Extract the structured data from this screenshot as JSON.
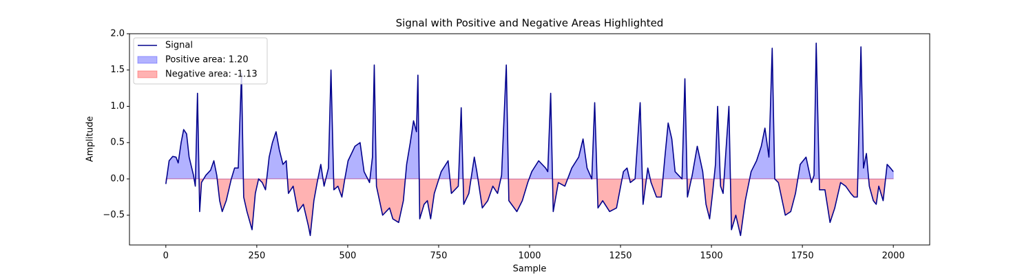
{
  "chart_data": {
    "type": "line",
    "title": "Signal with Positive and Negative Areas Highlighted",
    "x_label": "Sample",
    "y_label": "Amplitude",
    "x": [
      0,
      9,
      19,
      28,
      34,
      42,
      49,
      57,
      64,
      76,
      81,
      87,
      93,
      98,
      110,
      123,
      132,
      140,
      148,
      155,
      166,
      180,
      189,
      199,
      208,
      214,
      223,
      237,
      246,
      255,
      265,
      274,
      284,
      293,
      303,
      312,
      322,
      331,
      337,
      350,
      363,
      378,
      392,
      397,
      407,
      416,
      426,
      435,
      447,
      454,
      462,
      473,
      484,
      492,
      501,
      520,
      534,
      545,
      560,
      568,
      573,
      579,
      596,
      615,
      624,
      640,
      653,
      662,
      672,
      681,
      689,
      693,
      698,
      710,
      719,
      728,
      738,
      757,
      776,
      785,
      804,
      812,
      819,
      833,
      848,
      855,
      870,
      885,
      899,
      912,
      923,
      936,
      943,
      965,
      980,
      995,
      1006,
      1025,
      1044,
      1050,
      1058,
      1065,
      1079,
      1097,
      1116,
      1135,
      1147,
      1158,
      1171,
      1179,
      1188,
      1201,
      1220,
      1239,
      1258,
      1268,
      1277,
      1290,
      1304,
      1312,
      1325,
      1334,
      1349,
      1362,
      1372,
      1381,
      1391,
      1400,
      1419,
      1427,
      1434,
      1447,
      1461,
      1476,
      1485,
      1495,
      1503,
      1511,
      1517,
      1525,
      1532,
      1548,
      1555,
      1567,
      1580,
      1593,
      1609,
      1624,
      1637,
      1647,
      1658,
      1667,
      1674,
      1684,
      1703,
      1718,
      1731,
      1744,
      1760,
      1775,
      1782,
      1788,
      1797,
      1812,
      1826,
      1839,
      1855,
      1869,
      1883,
      1892,
      1901,
      1911,
      1918,
      1926,
      1934,
      1945,
      1953,
      1960,
      1972,
      1983,
      1992,
      2000
    ],
    "series": [
      {
        "name": "Signal",
        "color": "#00008b",
        "values": [
          -0.07,
          0.25,
          0.31,
          0.3,
          0.22,
          0.5,
          0.68,
          0.62,
          0.3,
          0.05,
          -0.1,
          1.18,
          -0.45,
          -0.05,
          0.05,
          0.12,
          0.25,
          0.05,
          -0.3,
          -0.45,
          -0.3,
          0.0,
          0.15,
          0.15,
          1.45,
          -0.25,
          -0.45,
          -0.7,
          -0.2,
          0.0,
          -0.05,
          -0.15,
          0.3,
          0.5,
          0.65,
          0.4,
          0.2,
          0.25,
          -0.2,
          -0.1,
          -0.45,
          -0.35,
          -0.65,
          -0.78,
          -0.3,
          -0.05,
          0.2,
          -0.1,
          0.15,
          1.5,
          -0.15,
          -0.1,
          -0.25,
          0.0,
          0.25,
          0.45,
          0.5,
          0.1,
          -0.05,
          0.3,
          1.57,
          -0.1,
          -0.5,
          -0.4,
          -0.55,
          -0.6,
          -0.3,
          0.2,
          0.5,
          0.8,
          0.65,
          1.43,
          -0.55,
          -0.35,
          -0.3,
          -0.55,
          -0.2,
          0.1,
          0.25,
          -0.2,
          -0.1,
          0.98,
          -0.35,
          -0.2,
          0.3,
          0.1,
          -0.4,
          -0.3,
          -0.1,
          -0.2,
          0.05,
          1.57,
          -0.3,
          -0.45,
          -0.3,
          -0.05,
          0.1,
          0.25,
          0.15,
          0.1,
          1.18,
          -0.45,
          -0.05,
          -0.1,
          0.15,
          0.3,
          0.55,
          0.15,
          0.0,
          1.05,
          -0.4,
          -0.3,
          -0.45,
          -0.4,
          0.1,
          0.15,
          -0.05,
          0.0,
          1.05,
          -0.35,
          0.15,
          -0.05,
          -0.25,
          -0.25,
          0.3,
          0.77,
          0.55,
          0.1,
          0.0,
          1.38,
          -0.25,
          0.05,
          0.45,
          0.1,
          -0.35,
          -0.55,
          -0.2,
          0.2,
          1.0,
          -0.1,
          -0.2,
          1.0,
          -0.7,
          -0.5,
          -0.78,
          -0.3,
          0.1,
          0.25,
          0.45,
          0.7,
          0.3,
          1.8,
          0.0,
          -0.05,
          -0.5,
          -0.45,
          -0.2,
          0.2,
          0.3,
          -0.05,
          0.05,
          1.87,
          -0.15,
          -0.15,
          -0.6,
          -0.4,
          -0.05,
          -0.1,
          -0.2,
          -0.25,
          -0.25,
          1.82,
          0.15,
          0.35,
          -0.1,
          -0.3,
          -0.35,
          -0.1,
          -0.3,
          0.2,
          0.15,
          0.1
        ]
      }
    ],
    "fills": [
      {
        "name": "Positive area: 1.20",
        "color": "#0000ff",
        "side": "positive"
      },
      {
        "name": "Negative area: -1.13",
        "color": "#ff0000",
        "side": "negative"
      }
    ],
    "fill_alpha": 0.3,
    "xlim": [
      -100,
      2100
    ],
    "xticks": [
      0,
      250,
      500,
      750,
      1000,
      1250,
      1500,
      1750,
      2000
    ],
    "ylim": [
      -0.91,
      2.0
    ],
    "yticks": [
      {
        "value": -0.5,
        "label": "−0.5"
      },
      {
        "value": 0,
        "label": "0.0"
      },
      0.5,
      {
        "value": 1,
        "label": "1.0"
      },
      1.5,
      {
        "value": 2,
        "label": "2.0"
      }
    ],
    "legend": "upper left"
  }
}
